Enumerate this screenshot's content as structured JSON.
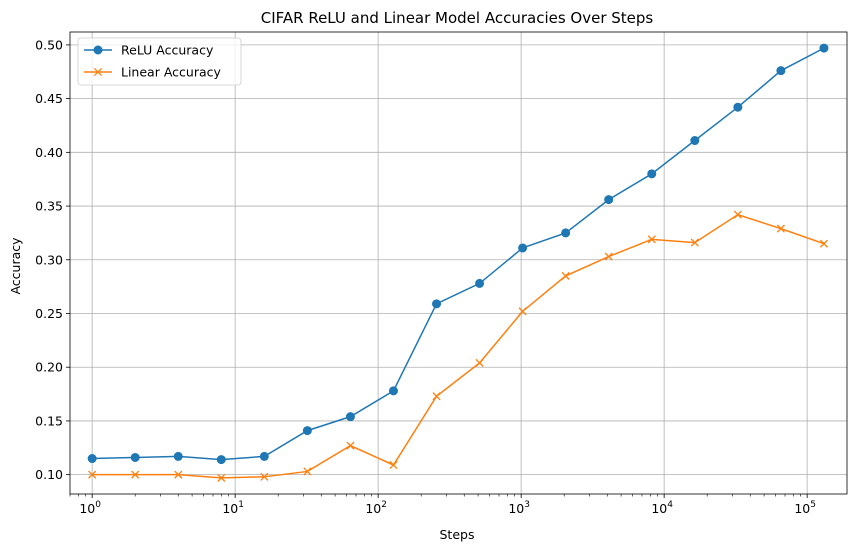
{
  "chart_data": {
    "type": "line",
    "title": "CIFAR ReLU and Linear Model Accuracies Over Steps",
    "xlabel": "Steps",
    "ylabel": "Accuracy",
    "xscale": "log",
    "xlim": [
      0.7,
      190000
    ],
    "ylim": [
      0.082,
      0.512
    ],
    "grid": true,
    "legend_position": "top-left",
    "x": [
      1,
      2,
      4,
      8,
      16,
      32,
      64,
      128,
      256,
      512,
      1024,
      2048,
      4096,
      8192,
      16384,
      32768,
      65536,
      131072
    ],
    "xtick_labels": [
      {
        "base": "10",
        "exp": "0",
        "value": 1
      },
      {
        "base": "10",
        "exp": "1",
        "value": 10
      },
      {
        "base": "10",
        "exp": "2",
        "value": 100
      },
      {
        "base": "10",
        "exp": "3",
        "value": 1000
      },
      {
        "base": "10",
        "exp": "4",
        "value": 10000
      },
      {
        "base": "10",
        "exp": "5",
        "value": 100000
      }
    ],
    "yticks": [
      "0.10",
      "0.15",
      "0.20",
      "0.25",
      "0.30",
      "0.35",
      "0.40",
      "0.45",
      "0.50"
    ],
    "series": [
      {
        "name": "ReLU Accuracy",
        "color": "#1f77b4",
        "marker": "circle",
        "values": [
          0.115,
          0.116,
          0.117,
          0.114,
          0.117,
          0.141,
          0.154,
          0.178,
          0.259,
          0.278,
          0.311,
          0.325,
          0.356,
          0.38,
          0.411,
          0.442,
          0.476,
          0.497
        ]
      },
      {
        "name": "Linear Accuracy",
        "color": "#ff7f0e",
        "marker": "x",
        "values": [
          0.1,
          0.1,
          0.1,
          0.097,
          0.098,
          0.103,
          0.127,
          0.109,
          0.173,
          0.204,
          0.252,
          0.285,
          0.303,
          0.319,
          0.316,
          0.342,
          0.329,
          0.315
        ]
      }
    ]
  }
}
